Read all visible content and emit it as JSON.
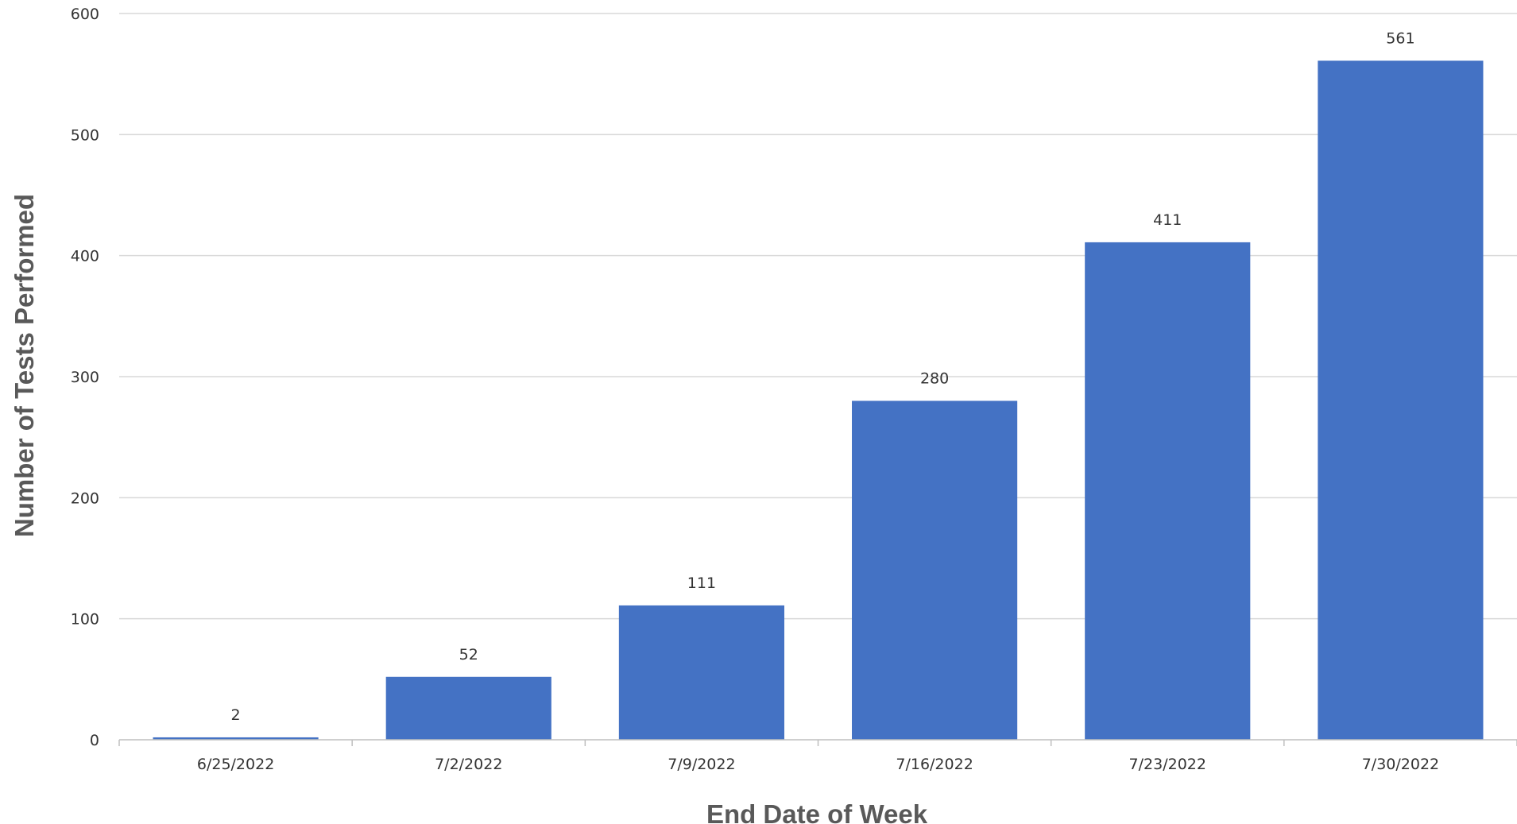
{
  "chart_data": {
    "type": "bar",
    "categories": [
      "6/25/2022",
      "7/2/2022",
      "7/9/2022",
      "7/16/2022",
      "7/23/2022",
      "7/30/2022"
    ],
    "values": [
      2,
      52,
      111,
      280,
      411,
      561
    ],
    "data_labels": [
      "2",
      "52",
      "111",
      "280",
      "411",
      "561"
    ],
    "xlabel": "End Date of Week",
    "ylabel": "Number of Tests Performed",
    "ylim": [
      0,
      600
    ],
    "yticks": [
      0,
      100,
      200,
      300,
      400,
      500,
      600
    ],
    "ytick_labels": [
      "0",
      "100",
      "200",
      "300",
      "400",
      "500",
      "600"
    ],
    "grid": true,
    "legend": "none",
    "bar_color": "#4472c4"
  }
}
